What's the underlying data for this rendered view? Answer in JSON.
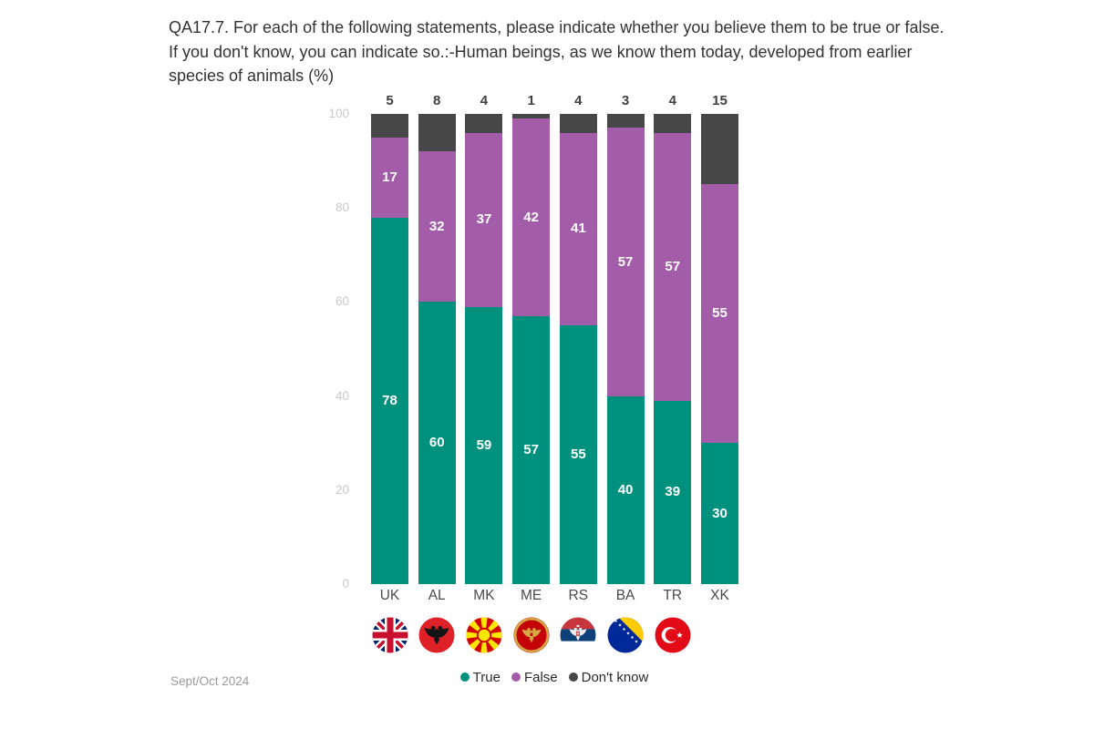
{
  "header": {
    "title": "QA17.7. For each of the following statements, please indicate whether you believe them to be true or false. If you don't know, you can indicate so.:-Human beings, as we know them today, developed from earlier species of animals (%)"
  },
  "footer": {
    "date_label": "Sept/Oct 2024"
  },
  "colors": {
    "true_series": "#00917E",
    "false_series": "#A35CA8",
    "dont_know_series": "#474747",
    "axis_tick_text": "#c9c9c9",
    "bar_value_text": "#ffffff",
    "top_value_text": "#404040",
    "category_text": "#4a4a4a",
    "title_text": "#333333",
    "footer_text": "#9a9a9a"
  },
  "chart_data": {
    "type": "bar",
    "stacked": true,
    "title": "QA17.7. For each of the following statements, please indicate whether you believe them to be true or false. If you don't know, you can indicate so.:-Human beings, as we know them today, developed from earlier species of animals (%)",
    "xlabel": "",
    "ylabel": "",
    "value_unit": "%",
    "categories": [
      "UK",
      "AL",
      "MK",
      "ME",
      "RS",
      "BA",
      "TR",
      "XK"
    ],
    "series": [
      {
        "name": "True",
        "color": "#00917E",
        "values": [
          78,
          60,
          59,
          57,
          55,
          40,
          39,
          30
        ]
      },
      {
        "name": "False",
        "color": "#A35CA8",
        "values": [
          17,
          32,
          37,
          42,
          41,
          57,
          57,
          55
        ]
      },
      {
        "name": "Don't know",
        "color": "#474747",
        "values": [
          5,
          8,
          4,
          1,
          4,
          3,
          4,
          15
        ]
      }
    ],
    "ylim": [
      0,
      100
    ],
    "yticks": [
      0,
      20,
      40,
      60,
      80,
      100
    ],
    "grid": false,
    "legend_position": "bottom",
    "legend": [
      "True",
      "False",
      "Don't know"
    ],
    "flags": [
      "uk",
      "al",
      "mk",
      "me",
      "rs",
      "ba",
      "tr",
      null
    ],
    "top_labels_series": "Don't know"
  }
}
